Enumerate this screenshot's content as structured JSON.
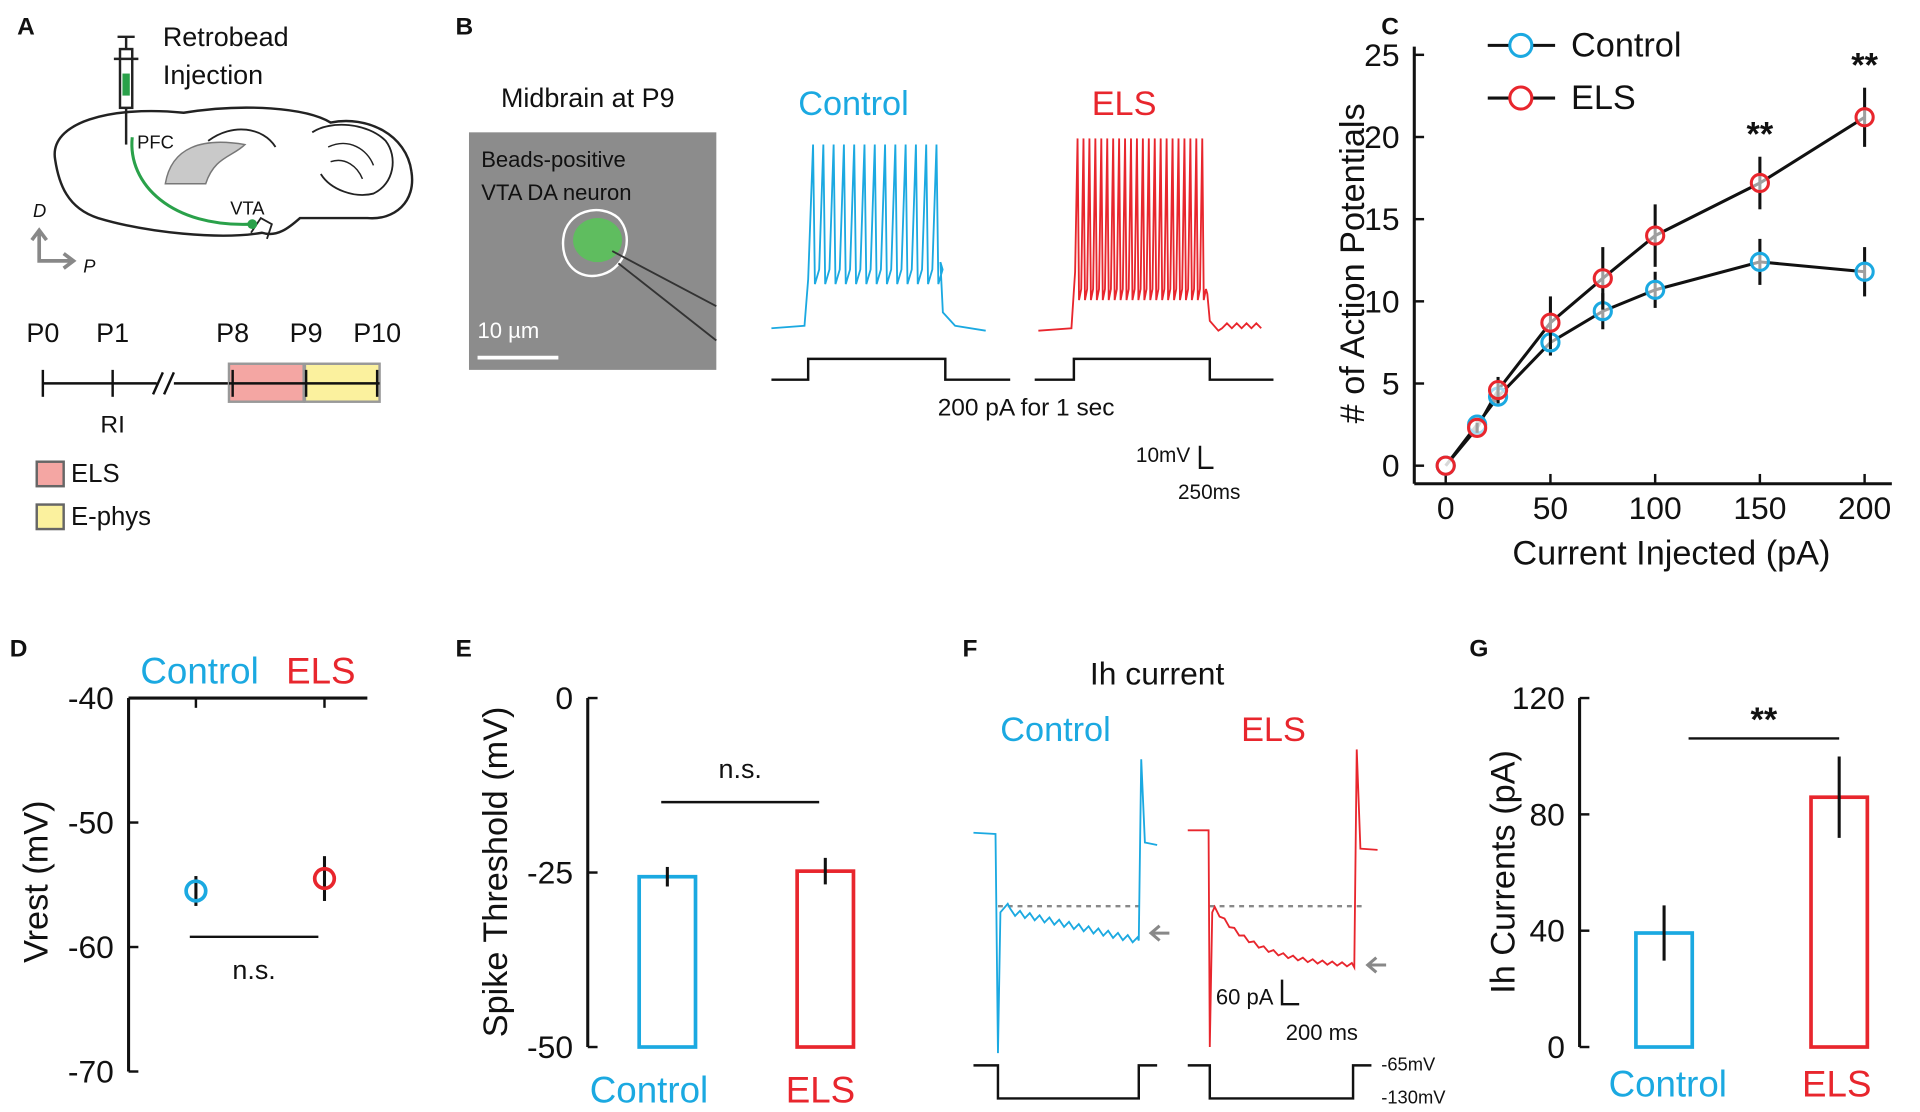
{
  "panel_labels": [
    "A",
    "B",
    "C",
    "D",
    "E",
    "F",
    "G"
  ],
  "panel_a": {
    "injection": [
      "Retrobead",
      "Injection"
    ],
    "regions": [
      "PFC",
      "VTA"
    ],
    "directions": [
      "D",
      "P"
    ],
    "timeline": [
      "P0",
      "P1",
      "P8",
      "P9",
      "P10"
    ],
    "marker": "RI",
    "legend": [
      {
        "name": "ELS",
        "color": "#f4a6a3"
      },
      {
        "name": "E-phys",
        "color": "#fbf19e"
      }
    ]
  },
  "panel_b": {
    "image_title": "Midbrain at P9",
    "image_caption": [
      "Beads-positive",
      "VTA DA neuron"
    ],
    "image_scale": "10 µm",
    "trace_titles": [
      "Control",
      "ELS"
    ],
    "trace_colors": [
      "#1ba9e1",
      "#e8262d"
    ],
    "stimulus": "200 pA for 1 sec",
    "scale_voltage": "10mV",
    "scale_time": "250ms"
  },
  "panel_f": {
    "title": "Ih current",
    "trace_titles": [
      "Control",
      "ELS"
    ],
    "trace_colors": [
      "#1ba9e1",
      "#e8262d"
    ],
    "scale_current": "60 pA",
    "scale_time": "200 ms",
    "holding_levels": [
      "-65mV",
      "-130mV"
    ]
  },
  "chart_data": [
    {
      "type": "line",
      "xlabel": "Current Injected (pA)",
      "ylabel": "# of Action Potentials",
      "x": [
        0,
        15,
        25,
        50,
        75,
        100,
        150,
        200
      ],
      "series": [
        {
          "name": "Control",
          "color": "#1ba9e1",
          "values": [
            0,
            2.5,
            4.2,
            7.5,
            9.4,
            10.7,
            12.4,
            11.8
          ],
          "errors": [
            0,
            0.4,
            0.6,
            0.8,
            1.1,
            1.1,
            1.4,
            1.5
          ]
        },
        {
          "name": "ELS",
          "color": "#e8262d",
          "values": [
            0,
            2.3,
            4.6,
            8.7,
            11.4,
            14.0,
            17.2,
            21.2
          ],
          "errors": [
            0,
            0.3,
            0.8,
            1.6,
            1.9,
            1.9,
            1.6,
            1.8
          ]
        }
      ],
      "xlim": [
        -15,
        213
      ],
      "xticks": [
        0,
        50,
        100,
        150,
        200
      ],
      "ylim": [
        -1.1,
        25.5
      ],
      "yticks": [
        0,
        5,
        10,
        15,
        20,
        25
      ],
      "annotations": [
        {
          "text": "**",
          "x": 150
        },
        {
          "text": "**",
          "x": 200
        }
      ],
      "legend": "upper left"
    },
    {
      "type": "scatter",
      "ylabel": "Vrest (mV)",
      "categories": [
        "Control",
        "ELS"
      ],
      "colors": [
        "#1ba9e1",
        "#e8262d"
      ],
      "values": [
        -55.5,
        -54.5
      ],
      "errors": [
        1.2,
        1.8
      ],
      "ylim": [
        -70,
        -40
      ],
      "yticks": [
        -40,
        -50,
        -60,
        -70
      ],
      "annotation": "n.s."
    },
    {
      "type": "bar",
      "ylabel": "Spike Threshold (mV)",
      "categories": [
        "Control",
        "ELS"
      ],
      "colors": [
        "#1ba9e1",
        "#e8262d"
      ],
      "values": [
        -25.6,
        -24.8
      ],
      "errors": [
        1.4,
        1.9
      ],
      "ylim": [
        -50,
        0
      ],
      "yticks": [
        0,
        -25,
        -50
      ],
      "annotation": "n.s."
    },
    {
      "type": "bar",
      "ylabel": "Ih Currents (pA)",
      "categories": [
        "Control",
        "ELS"
      ],
      "colors": [
        "#1ba9e1",
        "#e8262d"
      ],
      "values": [
        39.2,
        85.9
      ],
      "errors": [
        9.5,
        14
      ],
      "ylim": [
        0,
        120
      ],
      "yticks": [
        0,
        40,
        80,
        120
      ],
      "annotation": "**"
    }
  ]
}
